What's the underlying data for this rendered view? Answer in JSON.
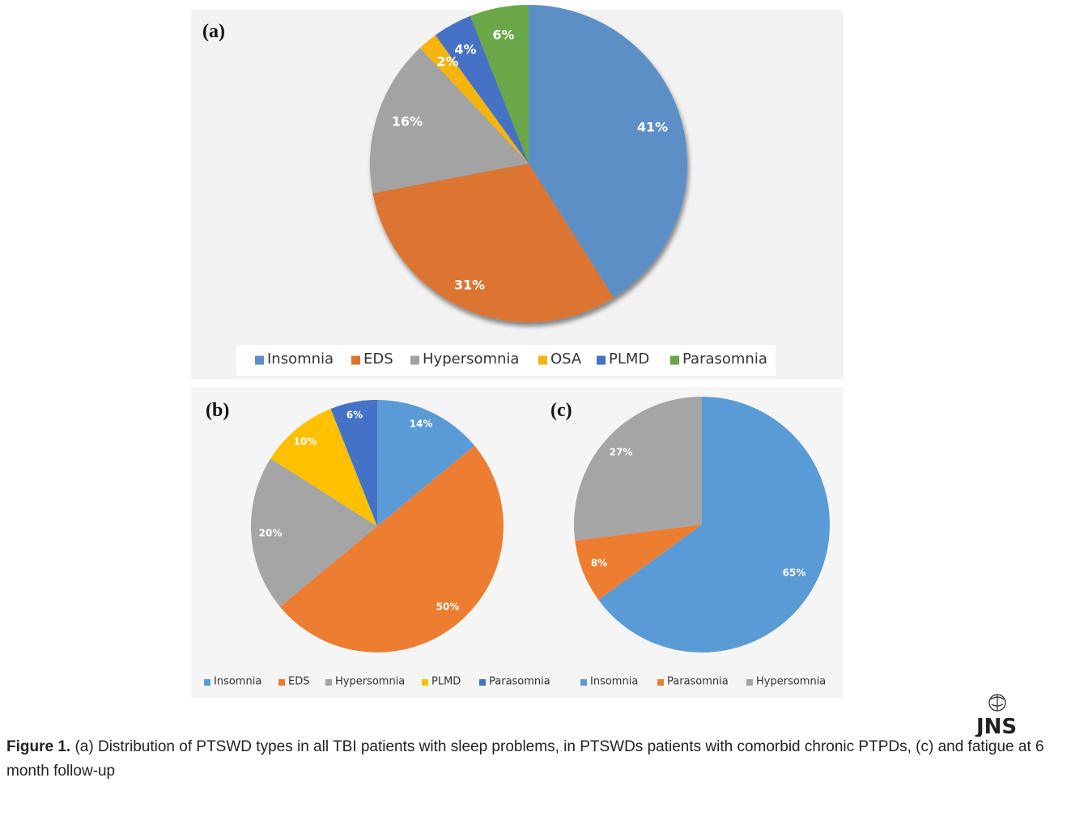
{
  "chart_data": [
    {
      "type": "pie",
      "panel": "(a)",
      "categories": [
        "Insomnia",
        "EDS",
        "Hypersomnia",
        "OSA",
        "PLMD",
        "Parasomnia"
      ],
      "values": [
        41,
        31,
        16,
        2,
        4,
        6
      ],
      "labels": [
        "41%",
        "31%",
        "16%",
        "2%",
        "4%",
        "6%"
      ],
      "colors": [
        "#5b8fc6",
        "#dc7430",
        "#a3a3a3",
        "#f6b40f",
        "#4472c4",
        "#6aa748"
      ],
      "legend_position": "bottom"
    },
    {
      "type": "pie",
      "panel": "(b)",
      "categories": [
        "Insomnia",
        "EDS",
        "Hypersomnia",
        "PLMD",
        "Parasomnia"
      ],
      "values": [
        14,
        50,
        20,
        10,
        6
      ],
      "labels": [
        "14%",
        "50%",
        "20%",
        "10%",
        "6%"
      ],
      "colors": [
        "#5b9bd5",
        "#ed7d31",
        "#a5a5a5",
        "#ffc000",
        "#4472c4"
      ],
      "legend_position": "bottom"
    },
    {
      "type": "pie",
      "panel": "(c)",
      "categories": [
        "Insomnia",
        "Parasomnia",
        "Hypersomnia"
      ],
      "values": [
        65,
        8,
        27
      ],
      "labels": [
        "65%",
        "8%",
        "27%"
      ],
      "colors": [
        "#5b9bd5",
        "#ed7d31",
        "#a5a5a5"
      ],
      "legend_position": "bottom"
    }
  ],
  "caption": {
    "lead": "Figure 1.",
    "text": " (a) Distribution of PTSWD types in all TBI patients with sleep problems, in PTSWDs patients with comorbid chronic PTPDs, (c) and fatigue at 6 month follow-up"
  },
  "logo": {
    "text": "JNS"
  }
}
